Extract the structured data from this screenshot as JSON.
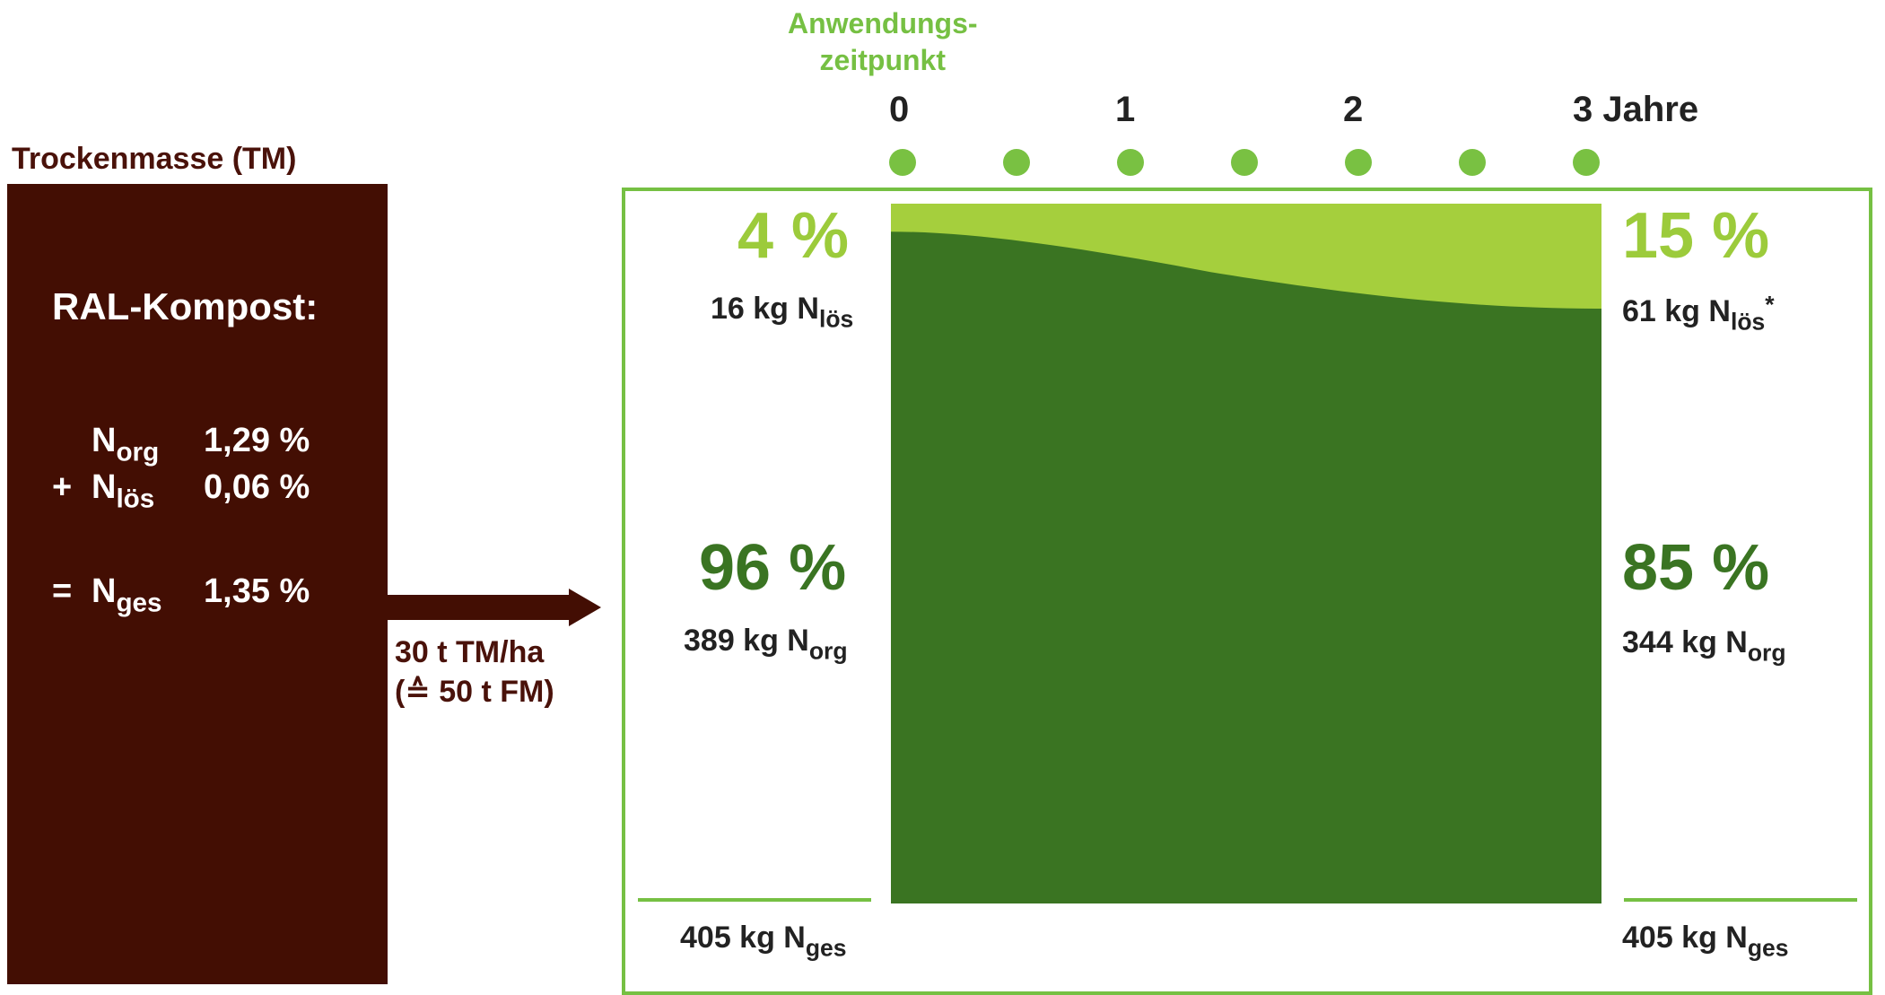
{
  "dry_matter": {
    "label": "Trockenmasse (TM)",
    "compost_title": "RAL-Kompost:",
    "rows": [
      {
        "op": "",
        "symbol": "N",
        "sub": "org",
        "value": "1,29 %"
      },
      {
        "op": "+",
        "symbol": "N",
        "sub": "lös",
        "value": "0,06 %"
      },
      {
        "op": "=",
        "symbol": "N",
        "sub": "ges",
        "value": "1,35 %"
      }
    ]
  },
  "application_rate": {
    "line1": "30 t TM/ha",
    "line2": "(≙ 50 t FM)"
  },
  "timeline": {
    "title_line1": "Anwendungs-",
    "title_line2": "zeitpunkt",
    "ticks": [
      "0",
      "1",
      "2",
      "3 Jahre"
    ],
    "dot_count": 7
  },
  "left_values": {
    "soluble_pct": "4 %",
    "soluble_kg": "16 kg N",
    "soluble_sub": "lös",
    "organic_pct": "96 %",
    "organic_kg": "389 kg N",
    "organic_sub": "org",
    "total_kg": "405 kg N",
    "total_sub": "ges"
  },
  "right_values": {
    "soluble_pct": "15 %",
    "soluble_kg": "61 kg N",
    "soluble_sub": "lös",
    "soluble_mark": "*",
    "organic_pct": "85 %",
    "organic_kg": "344 kg N",
    "organic_sub": "org",
    "total_kg": "405 kg N",
    "total_sub": "ges"
  },
  "area": {
    "years": [
      0,
      3
    ],
    "organic_share_start": 0.96,
    "organic_share_end": 0.85,
    "colors": {
      "organic": "#3a7422",
      "soluble": "#a5cf3d",
      "frame": "#76c043",
      "brown": "#430e03"
    }
  }
}
